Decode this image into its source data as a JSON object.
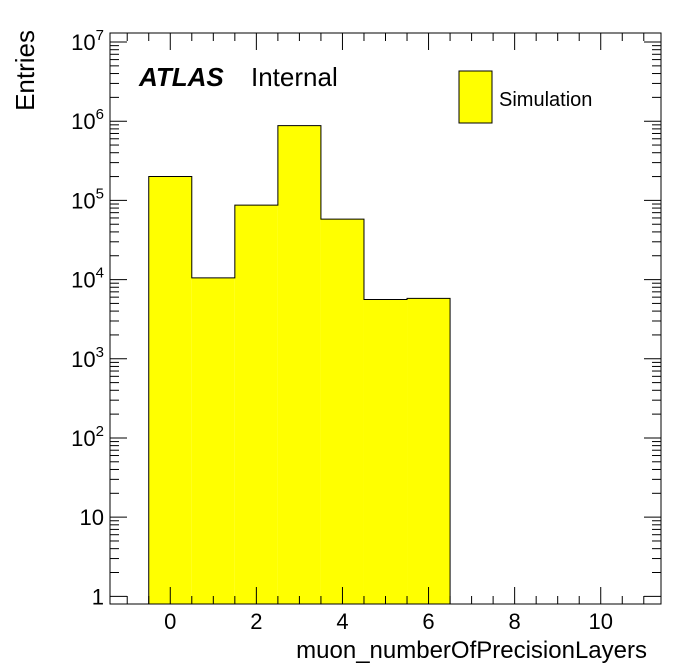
{
  "chart_data": {
    "type": "bar",
    "histogram": true,
    "bin_width": 1,
    "bin_centers": [
      0,
      1,
      2,
      3,
      4,
      5,
      6
    ],
    "values": [
      200000,
      10500,
      87000,
      880000,
      58000,
      5600,
      5800
    ],
    "xlabel": "muon_numberOfPrecisionLayers",
    "ylabel": "Entries",
    "xlim": [
      -1.4,
      11.4
    ],
    "ylim": [
      0.8,
      13000000
    ],
    "y_scale": "log",
    "x_ticks": [
      "0",
      "2",
      "4",
      "6",
      "8",
      "10"
    ],
    "x_tick_values": [
      0,
      2,
      4,
      6,
      8,
      10
    ],
    "y_ticks": [
      {
        "value": 1,
        "base": "1",
        "exp": ""
      },
      {
        "value": 10,
        "base": "10",
        "exp": ""
      },
      {
        "value": 100,
        "base": "10",
        "exp": "2"
      },
      {
        "value": 1000,
        "base": "10",
        "exp": "3"
      },
      {
        "value": 10000,
        "base": "10",
        "exp": "4"
      },
      {
        "value": 100000,
        "base": "10",
        "exp": "5"
      },
      {
        "value": 1000000,
        "base": "10",
        "exp": "6"
      },
      {
        "value": 10000000,
        "base": "10",
        "exp": "7"
      }
    ],
    "fill_color": "#ffff00",
    "line_color": "#000000",
    "legend": {
      "label": "Simulation",
      "position": "top-right"
    },
    "atlas_label": "ATLAS",
    "atlas_sublabel": "Internal",
    "grid": false
  }
}
